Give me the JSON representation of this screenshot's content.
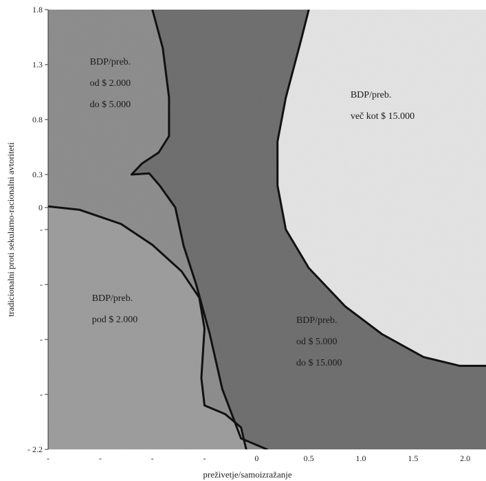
{
  "chart_data": {
    "type": "area",
    "xlabel": "preživetje/samoizražanje",
    "ylabel": "tradicionalni proti sekularno-racionalni avtoriteti",
    "xlim": [
      -2.0,
      2.2
    ],
    "ylim": [
      -2.2,
      1.8
    ],
    "x_ticks": [
      {
        "value": -2.0,
        "label": "-"
      },
      {
        "value": -1.5,
        "label": "-"
      },
      {
        "value": -1.0,
        "label": "-"
      },
      {
        "value": -0.5,
        "label": "-"
      },
      {
        "value": 0.0,
        "label": "0"
      },
      {
        "value": 0.5,
        "label": "0.5"
      },
      {
        "value": 1.0,
        "label": "1.0"
      },
      {
        "value": 1.5,
        "label": "1.5"
      },
      {
        "value": 2.0,
        "label": "2.0"
      }
    ],
    "y_ticks": [
      {
        "value": 1.8,
        "label": "1.8"
      },
      {
        "value": 1.3,
        "label": "1.3"
      },
      {
        "value": 0.8,
        "label": "0.8"
      },
      {
        "value": 0.3,
        "label": "0.3"
      },
      {
        "value": 0.0,
        "label": "0"
      },
      {
        "value": -0.2,
        "label": "-"
      },
      {
        "value": -0.7,
        "label": "-"
      },
      {
        "value": -1.2,
        "label": "-"
      },
      {
        "value": -1.7,
        "label": "-"
      },
      {
        "value": -2.2,
        "label": "- 2.2"
      }
    ],
    "regions": [
      {
        "lines": [
          "BDP/preb.",
          "od $ 2.000",
          "do $ 5.000"
        ],
        "at": [
          -1.6,
          1.3
        ],
        "color": "#8a8a8a"
      },
      {
        "lines": [
          "BDP/preb.",
          "več kot $ 15.000"
        ],
        "at": [
          0.9,
          1.0
        ],
        "color": "#e3e3e3"
      },
      {
        "lines": [
          "BDP/preb.",
          "pod $ 2.000"
        ],
        "at": [
          -1.58,
          -0.85
        ],
        "color": "#9a9a9a"
      },
      {
        "lines": [
          "BDP/preb.",
          "od $ 5.000",
          "do $ 15.000"
        ],
        "at": [
          0.38,
          -1.05
        ],
        "color": "#6b6b6b"
      }
    ],
    "boundaries": [
      {
        "name": "left-band-edge",
        "points": [
          [
            -1.0,
            1.8
          ],
          [
            -0.9,
            1.45
          ],
          [
            -0.84,
            1.0
          ],
          [
            -0.84,
            0.65
          ],
          [
            -0.94,
            0.5
          ],
          [
            -1.1,
            0.4
          ],
          [
            -1.2,
            0.3
          ],
          [
            -1.03,
            0.31
          ],
          [
            -0.93,
            0.2
          ],
          [
            -0.78,
            0.0
          ],
          [
            -0.7,
            -0.35
          ],
          [
            -0.58,
            -0.7
          ],
          [
            -0.45,
            -1.15
          ],
          [
            -0.33,
            -1.65
          ],
          [
            -0.15,
            -2.1
          ],
          [
            0.1,
            -2.2
          ]
        ]
      },
      {
        "name": "right-band-edge",
        "points": [
          [
            0.5,
            1.8
          ],
          [
            0.42,
            1.5
          ],
          [
            0.28,
            1.0
          ],
          [
            0.2,
            0.6
          ],
          [
            0.2,
            0.2
          ],
          [
            0.28,
            -0.2
          ],
          [
            0.5,
            -0.55
          ],
          [
            0.85,
            -0.9
          ],
          [
            1.2,
            -1.15
          ],
          [
            1.6,
            -1.36
          ],
          [
            1.95,
            -1.44
          ],
          [
            2.2,
            -1.44
          ]
        ]
      },
      {
        "name": "low-income-edge",
        "points": [
          [
            -2.0,
            0.01
          ],
          [
            -1.7,
            -0.02
          ],
          [
            -1.3,
            -0.15
          ],
          [
            -1.0,
            -0.34
          ],
          [
            -0.72,
            -0.58
          ],
          [
            -0.55,
            -0.82
          ],
          [
            -0.5,
            -1.1
          ],
          [
            -0.53,
            -1.55
          ],
          [
            -0.5,
            -1.8
          ],
          [
            -0.3,
            -1.88
          ],
          [
            -0.15,
            -2.0
          ],
          [
            -0.1,
            -2.2
          ]
        ]
      }
    ]
  }
}
